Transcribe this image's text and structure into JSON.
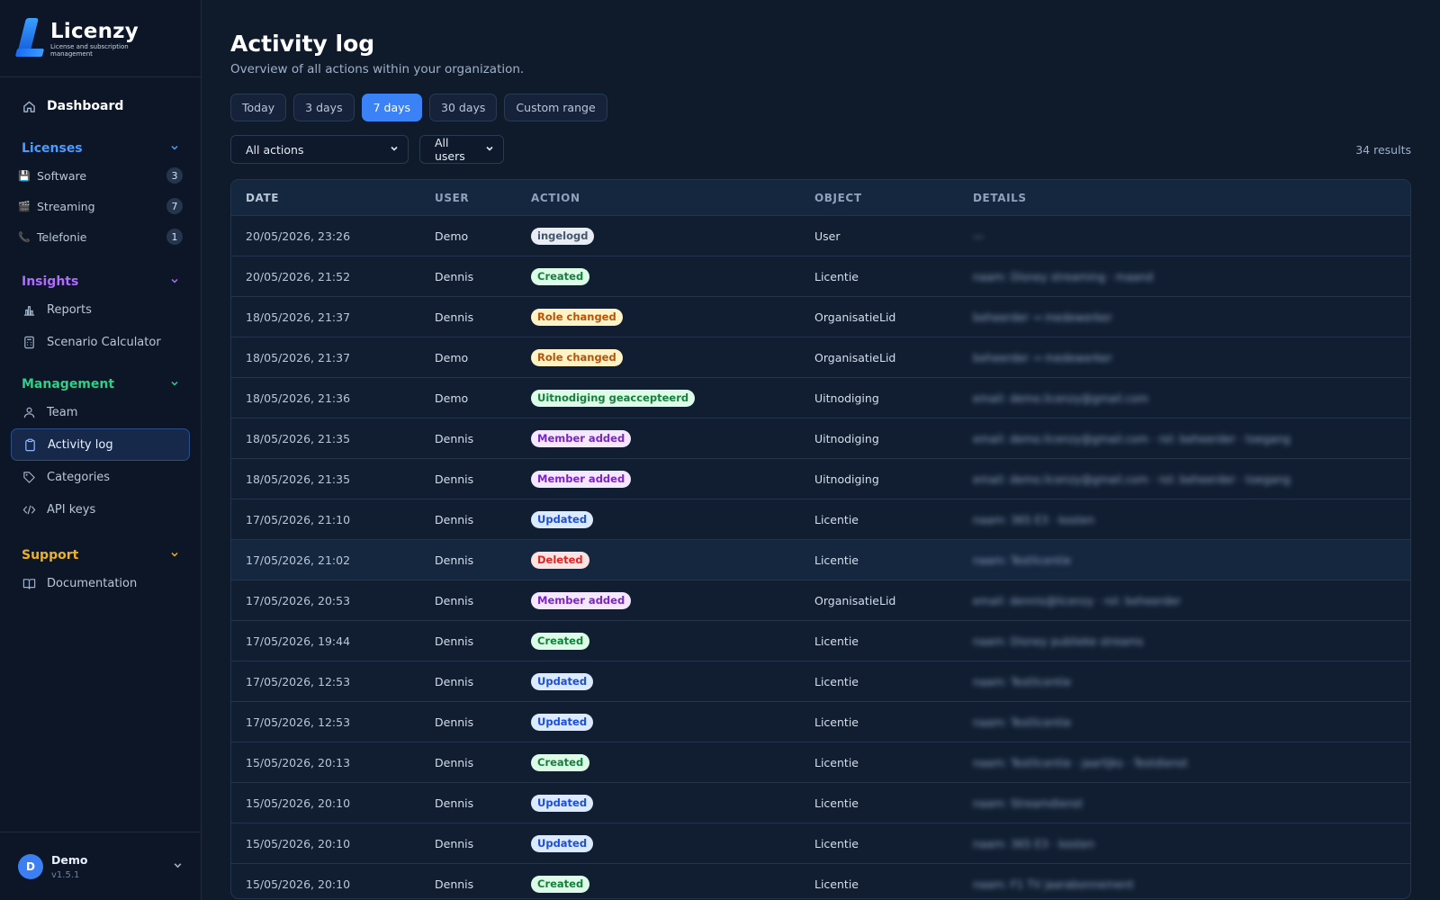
{
  "brand": {
    "name": "Licenzy",
    "subtitle": "License and subscription management"
  },
  "nav": {
    "dashboard": "Dashboard",
    "licenses": {
      "title": "Licenses",
      "items": [
        {
          "label": "Software",
          "emoji": "💾",
          "count": "3"
        },
        {
          "label": "Streaming",
          "emoji": "🎬",
          "count": "7"
        },
        {
          "label": "Telefonie",
          "emoji": "📞",
          "count": "1"
        }
      ]
    },
    "insights": {
      "title": "Insights",
      "items": [
        "Reports",
        "Scenario Calculator"
      ]
    },
    "management": {
      "title": "Management",
      "items": [
        "Team",
        "Activity log",
        "Categories",
        "API keys"
      ]
    },
    "support": {
      "title": "Support",
      "items": [
        "Documentation"
      ]
    }
  },
  "user": {
    "initial": "D",
    "name": "Demo",
    "version": "v1.5.1"
  },
  "page": {
    "title": "Activity log",
    "subtitle": "Overview of all actions within your organization."
  },
  "ranges": [
    "Today",
    "3 days",
    "7 days",
    "30 days",
    "Custom range"
  ],
  "active_range": "7 days",
  "filters": {
    "action": "All actions",
    "user": "All users",
    "results": "34 results"
  },
  "table": {
    "columns": [
      "DATE",
      "USER",
      "ACTION",
      "OBJECT",
      "DETAILS"
    ],
    "rows": [
      {
        "date": "20/05/2026, 23:26",
        "user": "Demo",
        "action": "ingelogd",
        "tone": "grey",
        "object": "User",
        "details": "—"
      },
      {
        "date": "20/05/2026, 21:52",
        "user": "Dennis",
        "action": "Created",
        "tone": "green",
        "object": "Licentie",
        "details": "naam: Disney streaming · maand"
      },
      {
        "date": "18/05/2026, 21:37",
        "user": "Dennis",
        "action": "Role changed",
        "tone": "amber",
        "object": "OrganisatieLid",
        "details": "beheerder → medewerker"
      },
      {
        "date": "18/05/2026, 21:37",
        "user": "Demo",
        "action": "Role changed",
        "tone": "amber",
        "object": "OrganisatieLid",
        "details": "beheerder → medewerker"
      },
      {
        "date": "18/05/2026, 21:36",
        "user": "Demo",
        "action": "Uitnodiging geaccepteerd",
        "tone": "green",
        "object": "Uitnodiging",
        "details": "email: demo.licenzy@gmail.com"
      },
      {
        "date": "18/05/2026, 21:35",
        "user": "Dennis",
        "action": "Member added",
        "tone": "purple",
        "object": "Uitnodiging",
        "details": "email: demo.licenzy@gmail.com · rol: beheerder · toegang"
      },
      {
        "date": "18/05/2026, 21:35",
        "user": "Dennis",
        "action": "Member added",
        "tone": "purple",
        "object": "Uitnodiging",
        "details": "email: demo.licenzy@gmail.com · rol: beheerder · toegang"
      },
      {
        "date": "17/05/2026, 21:10",
        "user": "Dennis",
        "action": "Updated",
        "tone": "blue",
        "object": "Licentie",
        "details": "naam: 365 E3 · kosten"
      },
      {
        "date": "17/05/2026, 21:02",
        "user": "Dennis",
        "action": "Deleted",
        "tone": "red",
        "object": "Licentie",
        "details": "naam: Testlicentie"
      },
      {
        "date": "17/05/2026, 20:53",
        "user": "Dennis",
        "action": "Member added",
        "tone": "purple",
        "object": "OrganisatieLid",
        "details": "email: dennis@licenzy · rol: beheerder"
      },
      {
        "date": "17/05/2026, 19:44",
        "user": "Dennis",
        "action": "Created",
        "tone": "green",
        "object": "Licentie",
        "details": "naam: Disney publieke streams"
      },
      {
        "date": "17/05/2026, 12:53",
        "user": "Dennis",
        "action": "Updated",
        "tone": "blue",
        "object": "Licentie",
        "details": "naam: Testlicentie"
      },
      {
        "date": "17/05/2026, 12:53",
        "user": "Dennis",
        "action": "Updated",
        "tone": "blue",
        "object": "Licentie",
        "details": "naam: Testlicentie"
      },
      {
        "date": "15/05/2026, 20:13",
        "user": "Dennis",
        "action": "Created",
        "tone": "green",
        "object": "Licentie",
        "details": "naam: Testlicentie · jaarlijks · Testdienst"
      },
      {
        "date": "15/05/2026, 20:10",
        "user": "Dennis",
        "action": "Updated",
        "tone": "blue",
        "object": "Licentie",
        "details": "naam: Streamdienst"
      },
      {
        "date": "15/05/2026, 20:10",
        "user": "Dennis",
        "action": "Updated",
        "tone": "blue",
        "object": "Licentie",
        "details": "naam: 365 E3 · kosten"
      },
      {
        "date": "15/05/2026, 20:10",
        "user": "Dennis",
        "action": "Created",
        "tone": "green",
        "object": "Licentie",
        "details": "naam: F1 TV jaarabonnement"
      }
    ]
  }
}
